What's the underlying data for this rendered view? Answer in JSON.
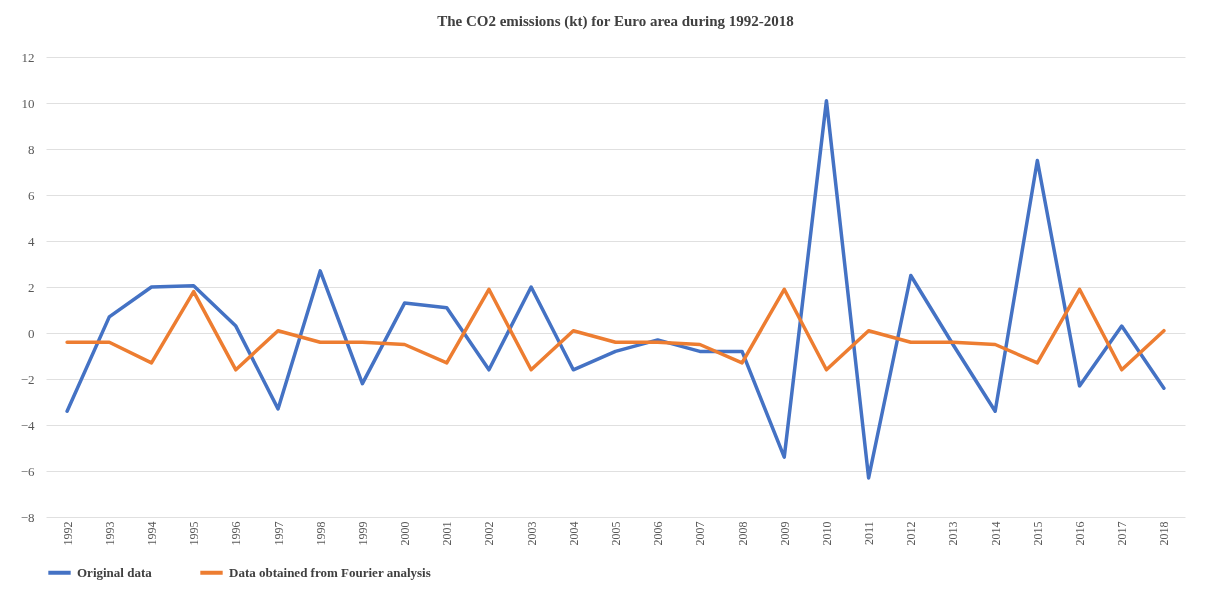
{
  "chart_data": {
    "type": "line",
    "title": "The CO2 emissions (kt) for Euro  area during  1992-2018",
    "categories": [
      "1992",
      "1993",
      "1994",
      "1995",
      "1996",
      "1997",
      "1998",
      "1999",
      "2000",
      "2001",
      "2002",
      "2003",
      "2004",
      "2005",
      "2006",
      "2007",
      "2008",
      "2009",
      "2010",
      "2011",
      "2012",
      "2013",
      "2014",
      "2015",
      "2016",
      "2017",
      "2018"
    ],
    "series": [
      {
        "name": "Original data",
        "color": "#4472c4",
        "values": [
          -3.4,
          0.7,
          2.0,
          2.05,
          0.3,
          -3.3,
          2.7,
          -2.2,
          1.3,
          1.1,
          -1.6,
          2.0,
          -1.6,
          -0.8,
          -0.3,
          -0.8,
          -0.8,
          -5.4,
          10.1,
          -6.3,
          2.5,
          -0.5,
          -3.4,
          7.5,
          -2.3,
          0.3,
          -2.4
        ]
      },
      {
        "name": "Data obtained from Fourier analysis",
        "color": "#ed7d31",
        "values": [
          -0.4,
          -0.4,
          -1.3,
          1.8,
          -1.6,
          0.1,
          -0.4,
          -0.4,
          -0.5,
          -1.3,
          1.9,
          -1.6,
          0.1,
          -0.4,
          -0.4,
          -0.5,
          -1.3,
          1.9,
          -1.6,
          0.1,
          -0.4,
          -0.4,
          -0.5,
          -1.3,
          1.9,
          -1.6,
          0.1
        ]
      }
    ],
    "ylim": [
      -8,
      12
    ],
    "yticks": [
      -8,
      -6,
      -4,
      -2,
      0,
      2,
      4,
      6,
      8,
      10,
      12
    ],
    "grid": "y",
    "legend": "bottom",
    "line_style": "solid",
    "marker": "none"
  }
}
